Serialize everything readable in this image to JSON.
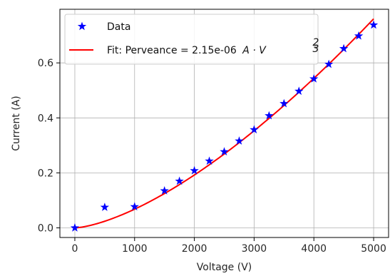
{
  "chart_data": {
    "type": "scatter",
    "xlabel": "Voltage (V)",
    "ylabel": "Current (A)",
    "xlim": [
      -250,
      5250
    ],
    "ylim": [
      -0.035,
      0.795
    ],
    "x_ticks": [
      0,
      1000,
      2000,
      3000,
      4000,
      5000
    ],
    "x_tick_labels": [
      "0",
      "1000",
      "2000",
      "3000",
      "4000",
      "5000"
    ],
    "y_ticks": [
      0.0,
      0.2,
      0.4,
      0.6
    ],
    "y_tick_labels": [
      "0.0",
      "0.2",
      "0.4",
      "0.6"
    ],
    "grid": true,
    "legend_position": "top-left",
    "series": [
      {
        "name": "Data",
        "kind": "scatter",
        "marker": "star",
        "color": "#0000ff",
        "x": [
          0,
          500,
          1000,
          1500,
          1750,
          2000,
          2250,
          2500,
          2750,
          3000,
          3250,
          3500,
          3750,
          4000,
          4250,
          4500,
          4750,
          5000
        ],
        "y": [
          0.0,
          0.075,
          0.077,
          0.135,
          0.17,
          0.208,
          0.243,
          0.277,
          0.316,
          0.357,
          0.408,
          0.452,
          0.497,
          0.542,
          0.595,
          0.652,
          0.698,
          0.738
        ]
      },
      {
        "name": "Fit: Perveance = 2.15e-06",
        "name_math": "A · V",
        "name_exponent_num": "2",
        "name_exponent_den": "3",
        "kind": "line",
        "color": "#ff0000",
        "perveance": 2.15e-06,
        "exponent": 1.5,
        "x_range": [
          0,
          5000
        ]
      }
    ]
  }
}
